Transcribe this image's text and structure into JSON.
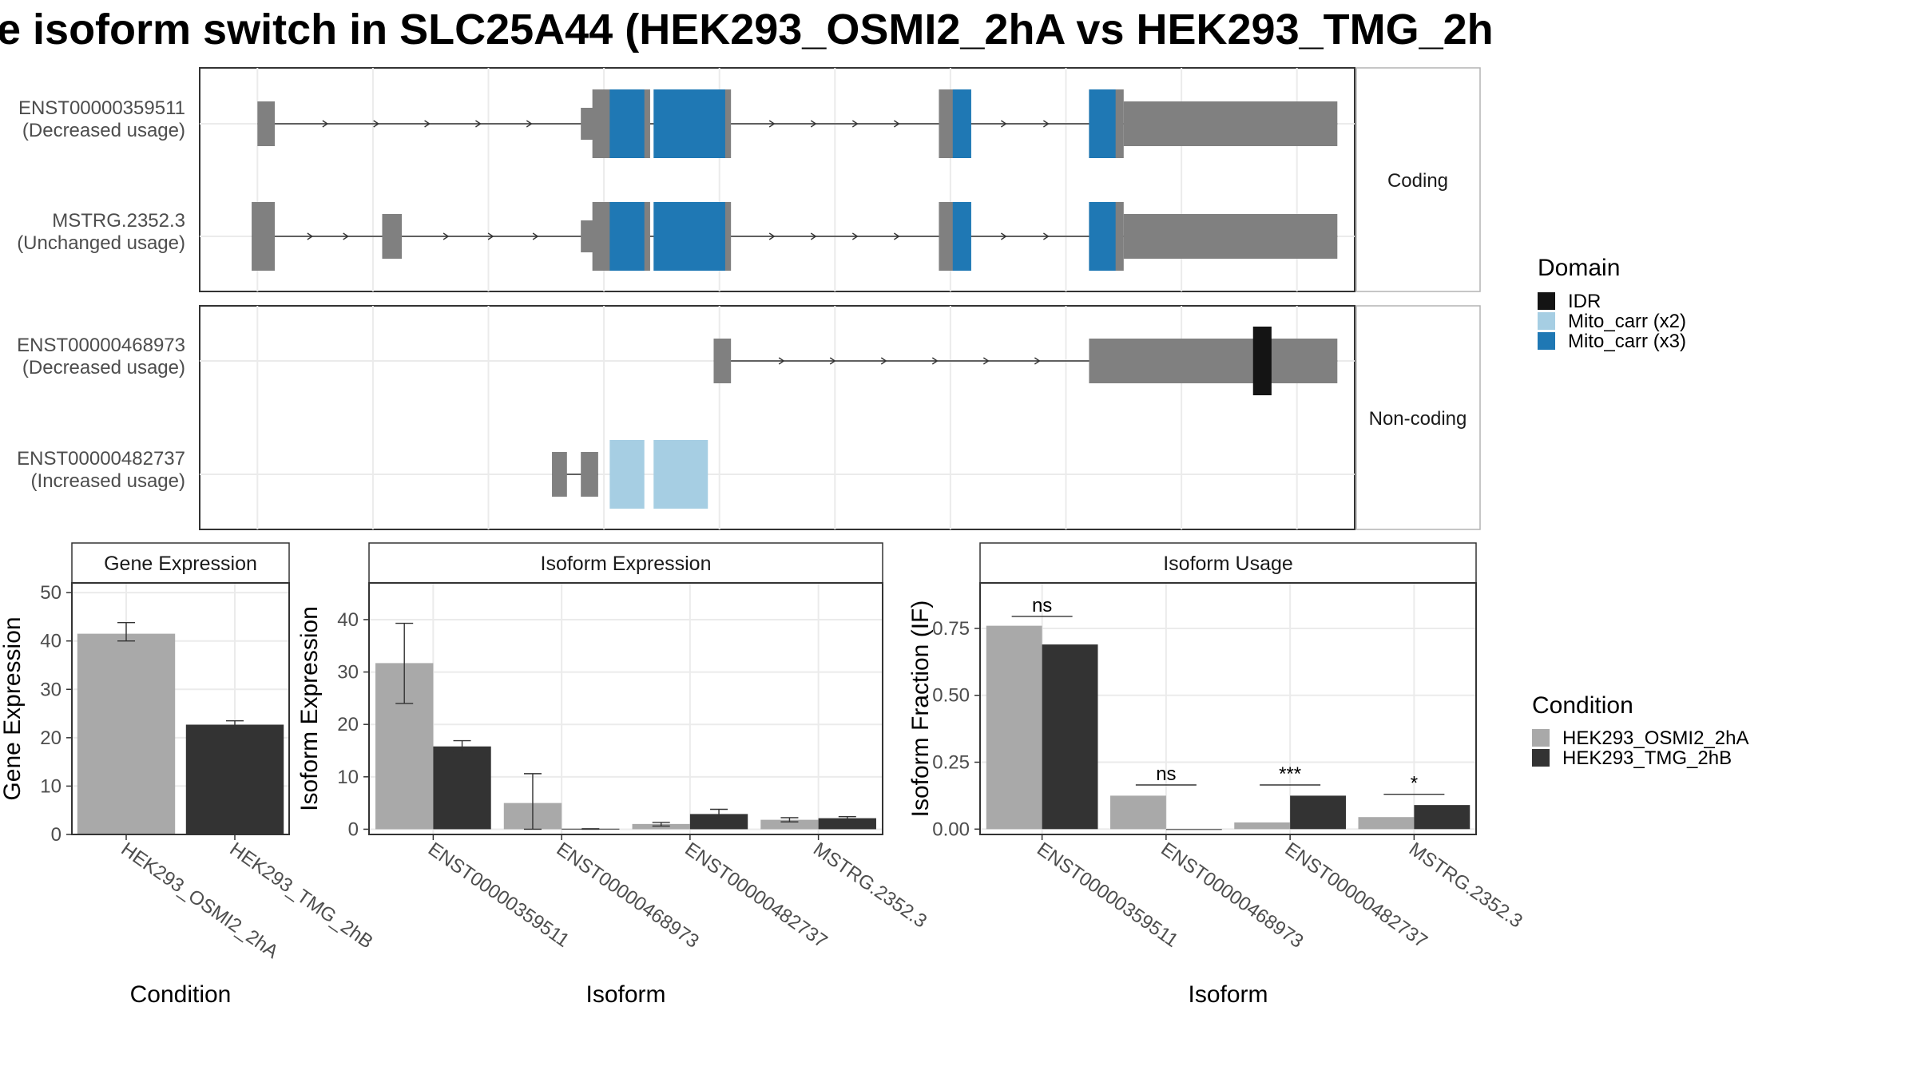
{
  "figure": {
    "title": "e isoform switch in SLC25A44 (HEK293_OSMI2_2hA vs HEK293_TMG_2h"
  },
  "colors": {
    "exon": "#808080",
    "IDR": "#141414",
    "Mito_carr (x2)": "#a6cee3",
    "Mito_carr (x3)": "#1f78b4",
    "HEK293_OSMI2_2hA": "#a9a9a9",
    "HEK293_TMG_2hB": "#333333",
    "grid": "#ebebeb",
    "border": "#333333"
  },
  "isoform_structure": {
    "facets": [
      "Coding",
      "Non-coding"
    ],
    "transcripts": [
      {
        "facet": "Coding",
        "id": "ENST00000359511",
        "usage": "(Decreased usage)",
        "exons": [
          [
            0.05,
            0.065
          ],
          [
            0.34,
            0.39
          ],
          [
            0.4,
            0.46
          ],
          [
            0.64,
            0.66
          ],
          [
            0.77,
            0.8
          ],
          [
            0.8,
            0.985
          ]
        ],
        "utr": [
          [
            0.33,
            0.345
          ]
        ],
        "domains": [
          {
            "name": "Mito_carr (x3)",
            "from": 0.355,
            "to": 0.385
          },
          {
            "name": "Mito_carr (x3)",
            "from": 0.393,
            "to": 0.455
          },
          {
            "name": "Mito_carr (x3)",
            "from": 0.652,
            "to": 0.668
          },
          {
            "name": "Mito_carr (x3)",
            "from": 0.77,
            "to": 0.793
          }
        ]
      },
      {
        "facet": "Coding",
        "id": "MSTRG.2352.3",
        "usage": "(Unchanged usage)",
        "exons": [
          [
            0.045,
            0.065
          ],
          [
            0.158,
            0.175
          ],
          [
            0.34,
            0.39
          ],
          [
            0.4,
            0.46
          ],
          [
            0.64,
            0.66
          ],
          [
            0.77,
            0.8
          ],
          [
            0.8,
            0.985
          ]
        ],
        "utr": [
          [
            0.33,
            0.345
          ]
        ],
        "domains": [
          {
            "name": "Mito_carr (x3)",
            "from": 0.355,
            "to": 0.385
          },
          {
            "name": "Mito_carr (x3)",
            "from": 0.393,
            "to": 0.455
          },
          {
            "name": "Mito_carr (x3)",
            "from": 0.652,
            "to": 0.668
          },
          {
            "name": "Mito_carr (x3)",
            "from": 0.77,
            "to": 0.793
          }
        ]
      },
      {
        "facet": "Non-coding",
        "id": "ENST00000468973",
        "usage": "(Decreased usage)",
        "exons": [
          [
            0.445,
            0.46
          ],
          [
            0.77,
            0.985
          ]
        ],
        "utr": [],
        "domains": [
          {
            "name": "IDR",
            "from": 0.912,
            "to": 0.928
          }
        ]
      },
      {
        "facet": "Non-coding",
        "id": "ENST00000482737",
        "usage": "(Increased usage)",
        "exons": [
          [
            0.305,
            0.318
          ],
          [
            0.33,
            0.345
          ]
        ],
        "utr": [],
        "domains": [
          {
            "name": "Mito_carr (x2)",
            "from": 0.355,
            "to": 0.385
          },
          {
            "name": "Mito_carr (x2)",
            "from": 0.393,
            "to": 0.44
          }
        ]
      }
    ]
  },
  "legend_domain": {
    "title": "Domain",
    "items": [
      "IDR",
      "Mito_carr (x2)",
      "Mito_carr (x3)"
    ]
  },
  "legend_condition": {
    "title": "Condition",
    "items": [
      "HEK293_OSMI2_2hA",
      "HEK293_TMG_2hB"
    ]
  },
  "chart_data": [
    {
      "type": "bar",
      "title": "Gene Expression",
      "xlabel": "Condition",
      "ylabel": "Gene Expression",
      "ylim": [
        0,
        52
      ],
      "yticks": [
        0,
        10,
        20,
        30,
        40,
        50
      ],
      "categories": [
        "HEK293_OSMI2_2hA",
        "HEK293_TMG_2hB"
      ],
      "values": [
        41.5,
        22.7
      ],
      "error": [
        [
          40.0,
          43.8
        ],
        [
          22.0,
          23.5
        ]
      ]
    },
    {
      "type": "bar",
      "title": "Isoform Expression",
      "xlabel": "Isoform",
      "ylabel": "Isoform Expression",
      "ylim": [
        -1,
        47
      ],
      "yticks": [
        0,
        10,
        20,
        30,
        40
      ],
      "categories": [
        "ENST00000359511",
        "ENST00000468973",
        "ENST00000482737",
        "MSTRG.2352.3"
      ],
      "series": [
        {
          "name": "HEK293_OSMI2_2hA",
          "values": [
            31.7,
            5.0,
            1.0,
            1.8
          ],
          "error": [
            [
              24.0,
              39.3
            ],
            [
              0.0,
              10.6
            ],
            [
              0.6,
              1.3
            ],
            [
              1.4,
              2.2
            ]
          ]
        },
        {
          "name": "HEK293_TMG_2hB",
          "values": [
            15.8,
            0.1,
            2.9,
            2.1
          ],
          "error": [
            [
              14.8,
              16.9
            ],
            [
              0.0,
              0.1
            ],
            [
              2.0,
              3.8
            ],
            [
              1.7,
              2.4
            ]
          ]
        }
      ]
    },
    {
      "type": "bar",
      "title": "Isoform Usage",
      "xlabel": "Isoform",
      "ylabel": "Isoform Fraction (IF)",
      "ylim": [
        -0.02,
        0.92
      ],
      "yticks": [
        0.0,
        0.25,
        0.5,
        0.75
      ],
      "ytick_labels": [
        "0.00",
        "0.25",
        "0.50",
        "0.75"
      ],
      "categories": [
        "ENST00000359511",
        "ENST00000468973",
        "ENST00000482737",
        "MSTRG.2352.3"
      ],
      "series": [
        {
          "name": "HEK293_OSMI2_2hA",
          "values": [
            0.76,
            0.125,
            0.025,
            0.045
          ]
        },
        {
          "name": "HEK293_TMG_2hB",
          "values": [
            0.69,
            0.0,
            0.125,
            0.09
          ]
        }
      ],
      "significance": [
        "ns",
        "ns",
        "***",
        "*"
      ],
      "significance_y": [
        0.795,
        0.165,
        0.165,
        0.13
      ]
    }
  ]
}
